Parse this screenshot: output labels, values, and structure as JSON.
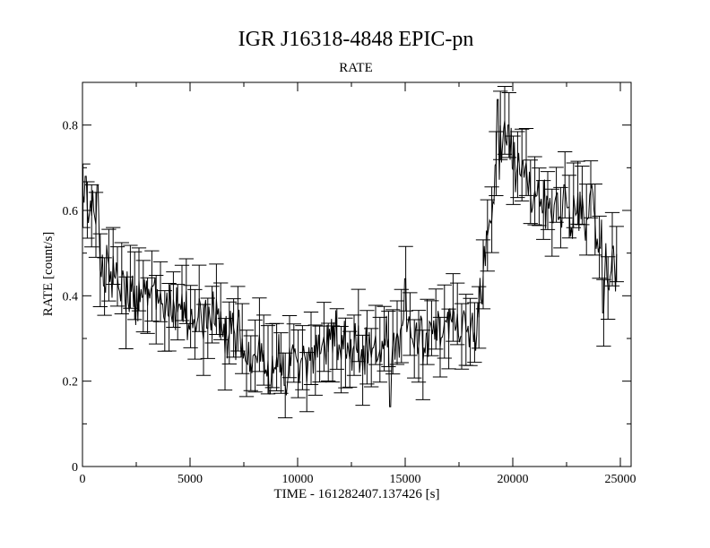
{
  "chart_data": {
    "type": "line",
    "title": "IGR J16318-4848 EPIC-pn",
    "subtitle": "RATE",
    "xlabel": "TIME - 161282407.137426 [s]",
    "ylabel": "RATE [count/s]",
    "xlim": [
      0,
      25500
    ],
    "ylim": [
      0,
      0.9
    ],
    "x_ticks": [
      0,
      5000,
      10000,
      15000,
      20000,
      25000
    ],
    "x_tick_labels": [
      "0",
      "5000",
      "10000",
      "15000",
      "20000",
      "25000"
    ],
    "y_ticks": [
      0,
      0.2,
      0.4,
      0.6,
      0.8
    ],
    "y_tick_labels": [
      "0",
      "0.2",
      "0.4",
      "0.6",
      "0.8"
    ],
    "grid": false,
    "error_bars": true,
    "bin_width": 50,
    "x_start": 25,
    "x_end": 24825,
    "trend": [
      [
        0,
        0.64
      ],
      [
        500,
        0.58
      ],
      [
        1000,
        0.46
      ],
      [
        2000,
        0.41
      ],
      [
        3000,
        0.4
      ],
      [
        4000,
        0.38
      ],
      [
        5000,
        0.36
      ],
      [
        6000,
        0.34
      ],
      [
        7000,
        0.31
      ],
      [
        8000,
        0.27
      ],
      [
        9000,
        0.23
      ],
      [
        10000,
        0.24
      ],
      [
        11000,
        0.27
      ],
      [
        12000,
        0.29
      ],
      [
        13000,
        0.28
      ],
      [
        14000,
        0.28
      ],
      [
        15000,
        0.32
      ],
      [
        16000,
        0.32
      ],
      [
        17000,
        0.32
      ],
      [
        18000,
        0.31
      ],
      [
        18300,
        0.33
      ],
      [
        18700,
        0.5
      ],
      [
        19200,
        0.68
      ],
      [
        19700,
        0.77
      ],
      [
        20200,
        0.7
      ],
      [
        21000,
        0.62
      ],
      [
        22000,
        0.6
      ],
      [
        23000,
        0.6
      ],
      [
        23700,
        0.6
      ],
      [
        24300,
        0.45
      ],
      [
        24800,
        0.47
      ]
    ],
    "spikes": [
      [
        150,
        0.68
      ],
      [
        700,
        0.66
      ],
      [
        4500,
        0.38
      ],
      [
        8700,
        0.17
      ],
      [
        9400,
        0.19
      ],
      [
        14300,
        0.14
      ],
      [
        15000,
        0.44
      ],
      [
        19300,
        0.86
      ],
      [
        19800,
        0.8
      ],
      [
        22400,
        0.66
      ],
      [
        24200,
        0.36
      ]
    ],
    "noise_amplitude": 0.05,
    "error_half_height": 0.075,
    "error_cap_halfwidth": 340,
    "error_bar_every": 4,
    "color": "#000000"
  }
}
